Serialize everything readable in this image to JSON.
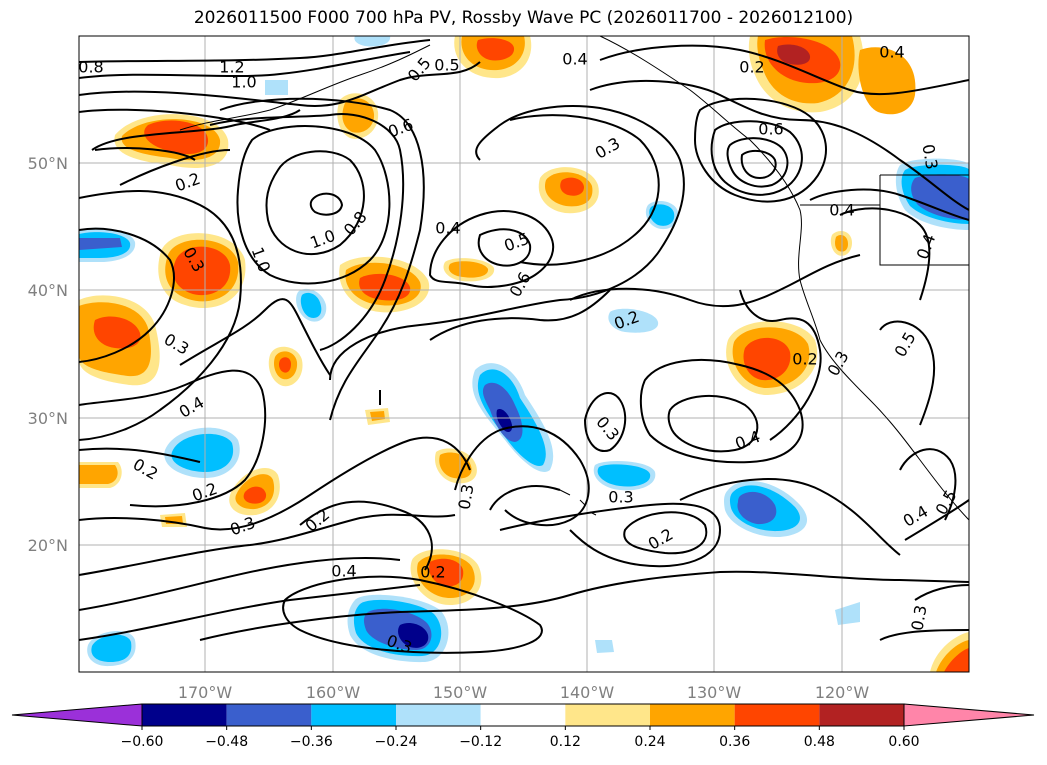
{
  "title": "2026011500 F000 700 hPa PV, Rossby Wave PC (2026011700 - 2026012100)",
  "map": {
    "lat_ticks": [
      "50°N",
      "40°N",
      "30°N",
      "20°N"
    ],
    "lon_ticks": [
      "170°W",
      "160°W",
      "150°W",
      "140°W",
      "130°W",
      "120°W"
    ]
  },
  "contour_labels": [
    "0.8",
    "1.2",
    "1.0",
    "0.5",
    "0.4",
    "0.2",
    "0.5",
    "0.4",
    "0.6",
    "0.3",
    "0.6",
    "0.2",
    "0.8",
    "1.0",
    "1.0",
    "0.4",
    "0.5",
    "0.3",
    "0.6",
    "0.2",
    "0.2",
    "0.3",
    "0.4",
    "0.3",
    "0.2",
    "0.4",
    "0.2",
    "0.3",
    "0.3",
    "0.2",
    "0.4",
    "0.3",
    "0.2",
    "0.3",
    "0.2",
    "0.4",
    "0.3",
    "0.5",
    "0.4",
    "0.5",
    "0.4",
    "0.3",
    "0.3"
  ],
  "colorbar": {
    "tick_labels": [
      "−0.60",
      "−0.48",
      "−0.36",
      "−0.24",
      "−0.12",
      "0.12",
      "0.24",
      "0.36",
      "0.48",
      "0.60"
    ],
    "colors": [
      "#9b30d9",
      "#00008b",
      "#3a5fcd",
      "#00bfff",
      "#afe1fa",
      "#ffffff",
      "#ffe68a",
      "#ffa500",
      "#ff4500",
      "#b22222",
      "#ff85a9"
    ]
  }
}
